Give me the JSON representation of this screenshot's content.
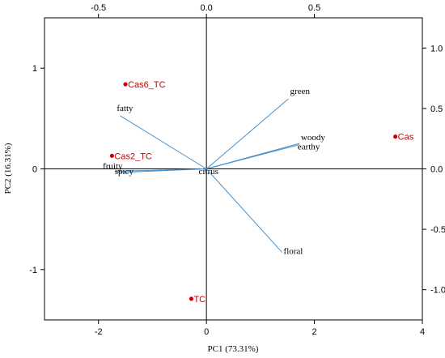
{
  "chart_data": {
    "type": "biplot",
    "xlabel": "PC1 (73.31%)",
    "ylabel": "PC2 (16.31%)",
    "xlim": [
      -3,
      4
    ],
    "ylim": [
      -1.5,
      1.5
    ],
    "xticks": [
      -2,
      0,
      2,
      4
    ],
    "yticks": [
      -1,
      0,
      1
    ],
    "top_xlim": [
      -0.75,
      1.0
    ],
    "top_xticks": [
      -0.5,
      0.0,
      0.5
    ],
    "right_ylim": [
      -1.25,
      1.25
    ],
    "right_yticks": [
      1.0,
      0.5,
      0.0,
      -0.5,
      -1.0
    ],
    "scores": [
      {
        "label": "Cas6_TC",
        "x": -1.5,
        "y": 0.84
      },
      {
        "label": "Cas2_TC",
        "x": -1.75,
        "y": 0.13
      },
      {
        "label": "Cas",
        "x": 3.5,
        "y": 0.32
      },
      {
        "label": "TC",
        "x": -0.28,
        "y": -1.29
      }
    ],
    "loadings": [
      {
        "label": "green",
        "x": 0.38,
        "y": 0.58
      },
      {
        "label": "woody",
        "x": 0.43,
        "y": 0.21
      },
      {
        "label": "earthy",
        "x": 0.43,
        "y": 0.2
      },
      {
        "label": "fatty",
        "x": -0.4,
        "y": 0.44
      },
      {
        "label": "fruity",
        "x": -0.42,
        "y": -0.02
      },
      {
        "label": "spicy",
        "x": -0.41,
        "y": -0.03
      },
      {
        "label": "citrus",
        "x": -0.01,
        "y": -0.01
      },
      {
        "label": "floral",
        "x": 0.35,
        "y": -0.69
      }
    ],
    "colors": {
      "scores": "#cc0000",
      "loadings": "#4a90c8",
      "axes": "#000000"
    },
    "grid": false
  }
}
